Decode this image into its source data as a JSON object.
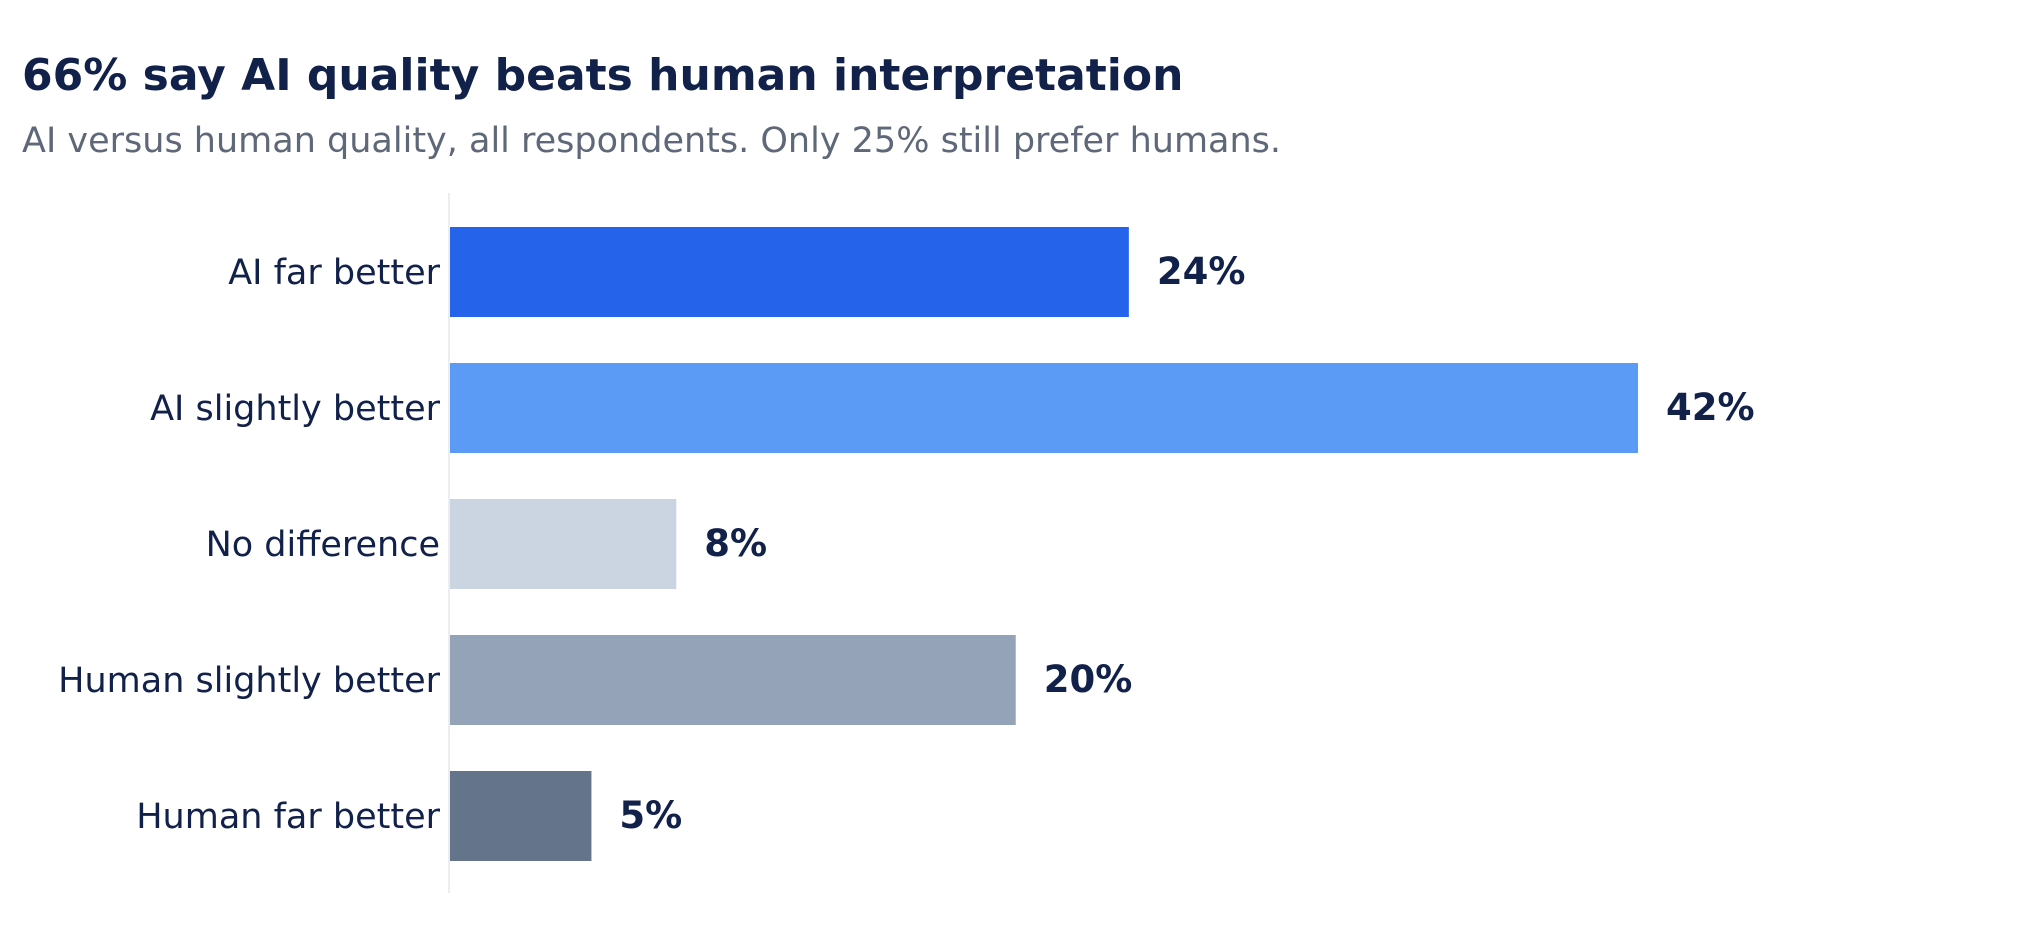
{
  "chart_data": {
    "type": "bar",
    "orientation": "horizontal",
    "title": "66% say AI quality beats human interpretation",
    "subtitle": "AI versus human quality, all respondents. Only 25% still prefer humans.",
    "categories": [
      "AI far better",
      "AI slightly better",
      "No difference",
      "Human slightly better",
      "Human far better"
    ],
    "values": [
      24,
      42,
      8,
      20,
      5
    ],
    "value_labels": [
      "24%",
      "42%",
      "8%",
      "20%",
      "5%"
    ],
    "colors": [
      "#2563eb",
      "#5b9af5",
      "#cbd5e1",
      "#94a3b8",
      "#64748b"
    ],
    "xlim": [
      0,
      55
    ],
    "grid": false,
    "legend": "none"
  }
}
